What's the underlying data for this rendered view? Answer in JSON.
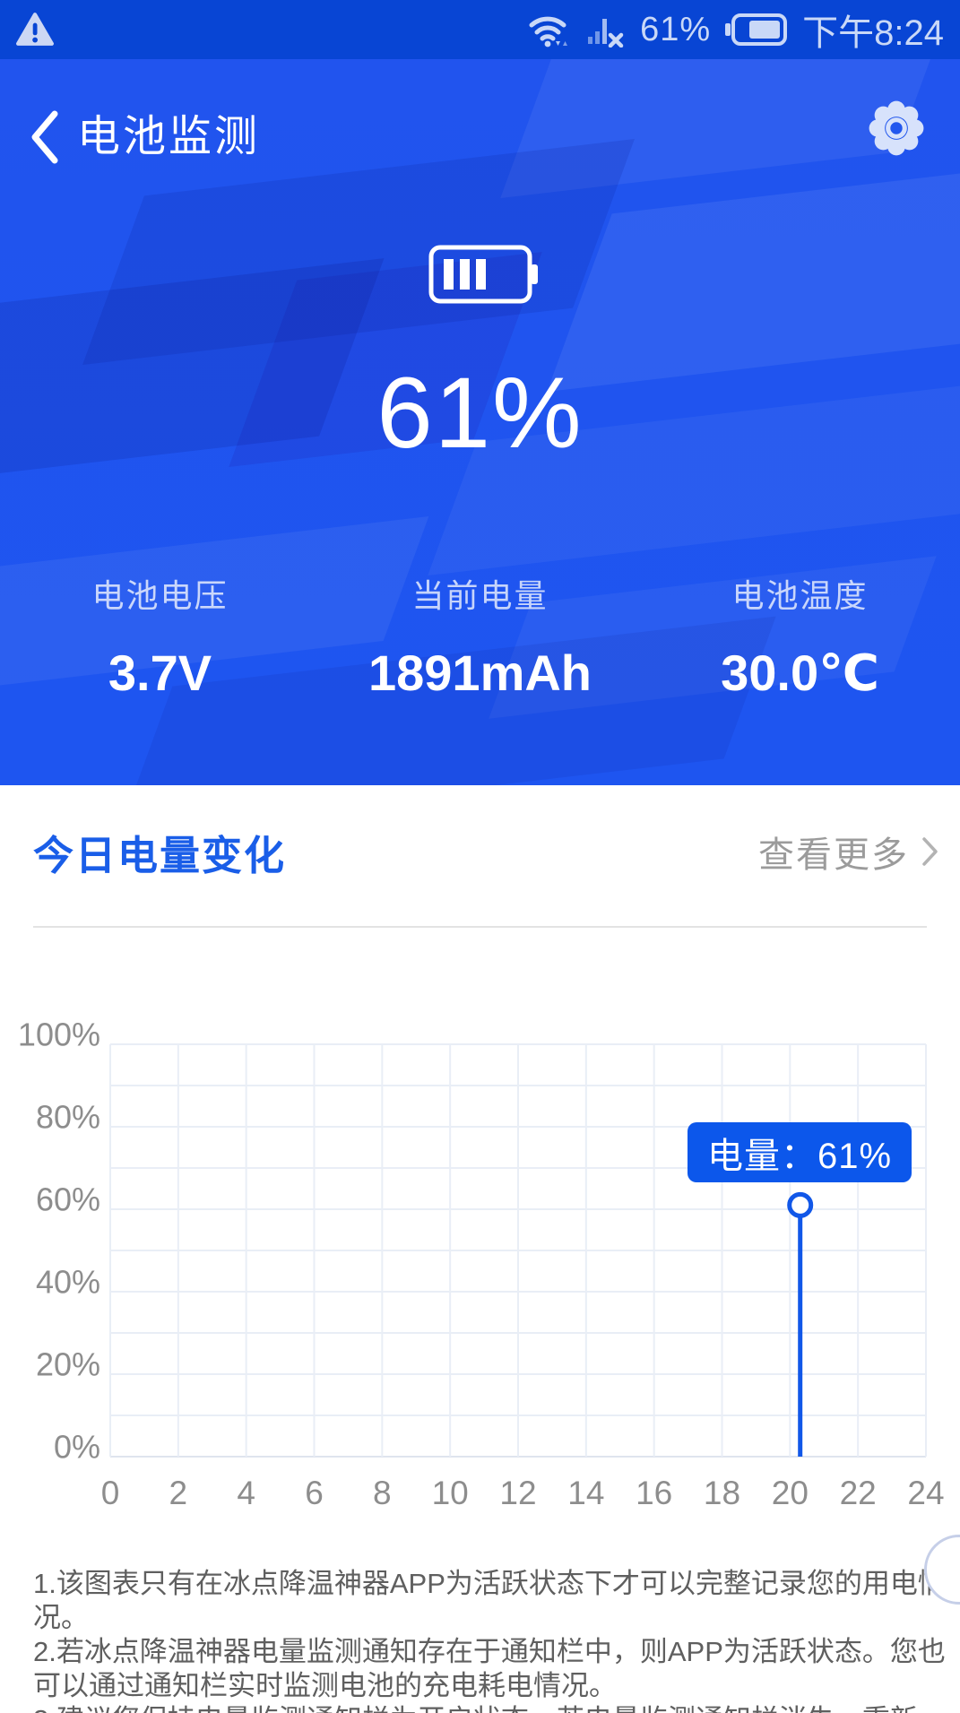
{
  "status_bar": {
    "battery_percent": "61%",
    "time": "下午8:24"
  },
  "hero": {
    "title": "电池监测",
    "battery_percent": "61%",
    "stats": [
      {
        "label": "电池电压",
        "value": "3.7V"
      },
      {
        "label": "当前电量",
        "value": "1891mAh"
      },
      {
        "label": "电池温度",
        "value": "30.0℃"
      }
    ]
  },
  "section": {
    "title": "今日电量变化",
    "more_label": "查看更多"
  },
  "chart_data": {
    "type": "line",
    "title": "今日电量变化",
    "xlabel": "",
    "ylabel": "",
    "xlim": [
      0,
      24
    ],
    "ylim": [
      0,
      100
    ],
    "x_ticks": [
      0,
      2,
      4,
      6,
      8,
      10,
      12,
      14,
      16,
      18,
      20,
      22,
      24
    ],
    "y_ticks": [
      "0%",
      "20%",
      "40%",
      "60%",
      "80%",
      "100%"
    ],
    "y_grid_step": 10,
    "y_label_step": 20,
    "grid": true,
    "legend_position": "none",
    "series": [
      {
        "name": "电量",
        "points": [
          {
            "x": 20.3,
            "y": 61
          }
        ]
      }
    ],
    "tooltip": "电量：61%"
  },
  "notes": {
    "items": [
      "1.该图表只有在冰点降温神器APP为活跃状态下才可以完整记录您的用电情况。",
      "2.若冰点降温神器电量监测通知存在于通知栏中，则APP为活跃状态。您也可以通过通知栏实时监测电池的充电耗电情况。",
      "3.建议您保持电量监测通知栏为开启状态，若电量监测通知栏消失，重新"
    ]
  },
  "colors": {
    "status_bar": "#0845d4",
    "hero_top": "#2154ee",
    "hero_bottom": "#1e55f0",
    "accent_blue": "#1b57ee",
    "tooltip_bg": "#0c57eb",
    "section_title": "#1a5ee8",
    "muted_text": "#9b9b9b",
    "axis_text": "#8d8d8d",
    "note_text": "#5f5f5f",
    "grid_line": "#e9eef6",
    "chart_line": "#1157e8",
    "status_icon": "#c9d8f7"
  }
}
